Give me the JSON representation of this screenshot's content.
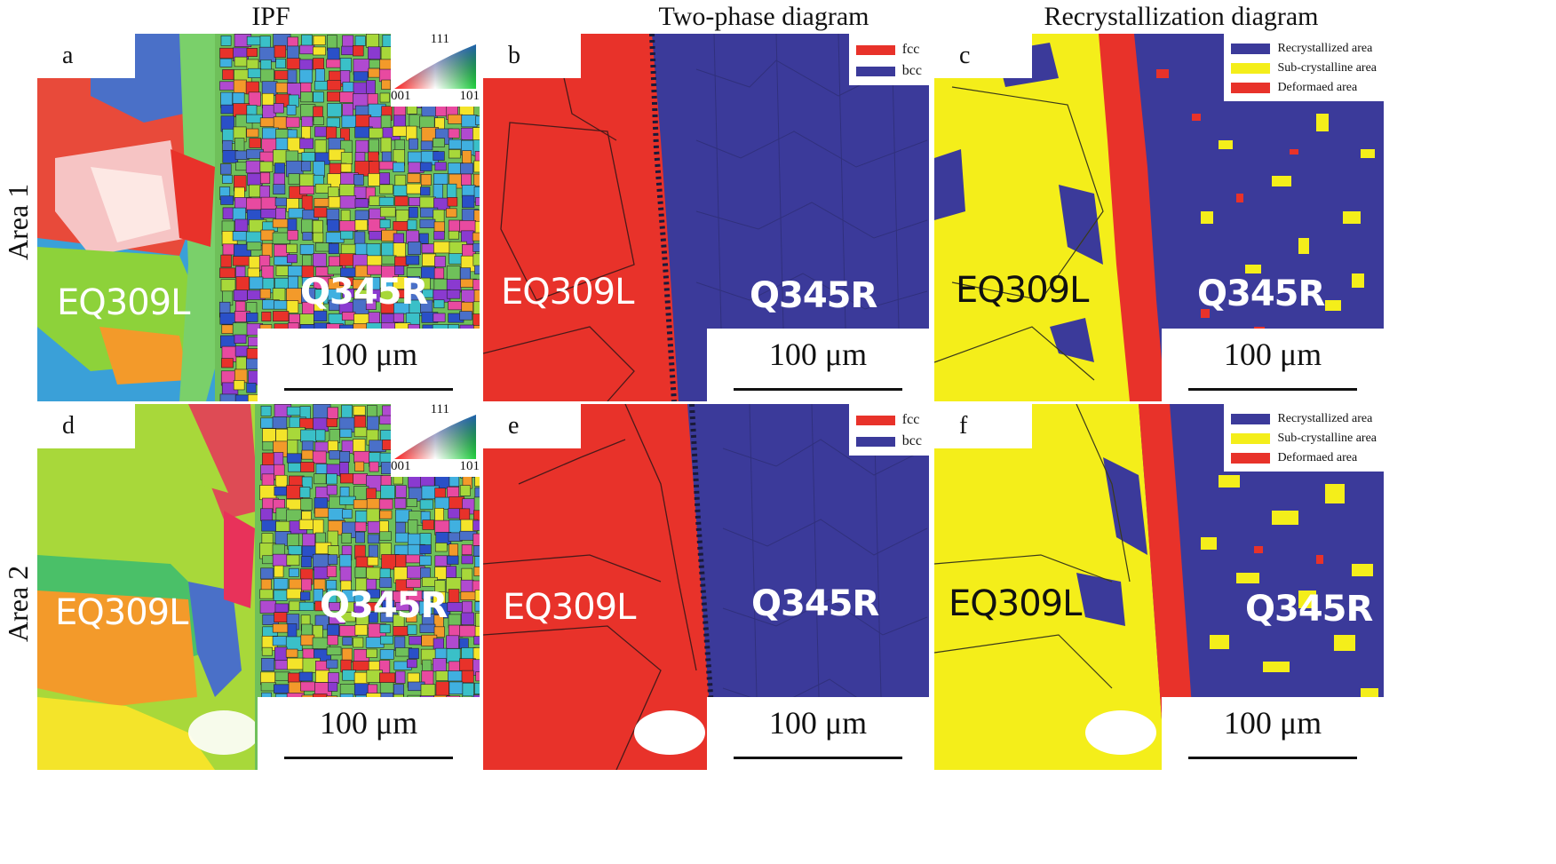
{
  "columns": {
    "ipf": "IPF",
    "two_phase": "Two-phase diagram",
    "recrystallization": "Recrystallization diagram"
  },
  "rows": {
    "area1": "Area 1",
    "area2": "Area 2"
  },
  "panels": {
    "a": {
      "letter": "a",
      "left_material": "EQ309L",
      "right_material": "Q345R",
      "scale": "100 μm"
    },
    "b": {
      "letter": "b",
      "left_material": "EQ309L",
      "right_material": "Q345R",
      "scale": "100 μm"
    },
    "c": {
      "letter": "c",
      "left_material": "EQ309L",
      "right_material": "Q345R",
      "scale": "100 μm"
    },
    "d": {
      "letter": "d",
      "left_material": "EQ309L",
      "right_material": "Q345R",
      "scale": "100 μm"
    },
    "e": {
      "letter": "e",
      "left_material": "EQ309L",
      "right_material": "Q345R",
      "scale": "100 μm"
    },
    "f": {
      "letter": "f",
      "left_material": "EQ309L",
      "right_material": "Q345R",
      "scale": "100 μm"
    }
  },
  "ipf_key": {
    "top": "111",
    "left": "001",
    "right": "101"
  },
  "phase_legend": [
    {
      "label": "fcc",
      "color": "#e8322a"
    },
    {
      "label": "bcc",
      "color": "#3b3a9a"
    }
  ],
  "recrystallization_legend": [
    {
      "label": "Recrystallized area",
      "color": "#3b3a9a"
    },
    {
      "label": "Sub-crystalline area",
      "color": "#f4ee1a"
    },
    {
      "label": "Deformaed area",
      "color": "#e8322a"
    }
  ]
}
